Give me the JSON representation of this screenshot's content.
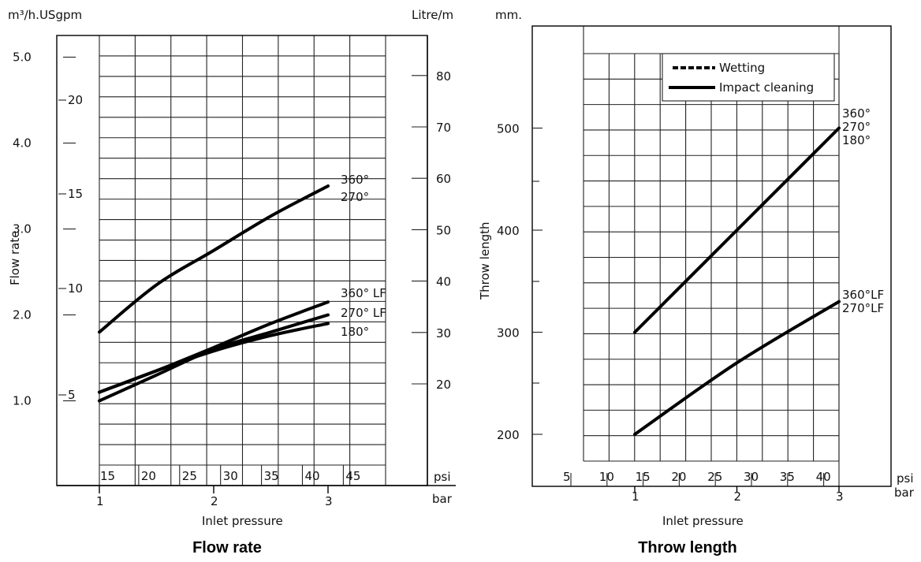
{
  "chart_data": [
    {
      "type": "line",
      "title": "Flow rate",
      "xlabel": "Inlet pressure",
      "ylabel": "Flow rate",
      "x_unit_labels": [
        "psi",
        "bar"
      ],
      "top_left_units": "m³/h.USgpm",
      "top_right_units": "Litre/m",
      "xlim_bar": [
        0.6,
        3.5
      ],
      "ylim_m3h": [
        0.05,
        5.55
      ],
      "bar_ticks": [
        "1",
        "2",
        "3"
      ],
      "psi_ticks": [
        "15",
        "20",
        "25",
        "30",
        "35",
        "40",
        "45"
      ],
      "m3h_ticks": [
        "1.0",
        "2.0",
        "3.0",
        "4.0",
        "5.0"
      ],
      "usgpm_ticks": [
        "5",
        "10",
        "15",
        "20"
      ],
      "litre_ticks": [
        "20",
        "30",
        "40",
        "50",
        "60",
        "70",
        "80"
      ],
      "grid": true,
      "series": [
        {
          "name": "360° 270°",
          "label_lines": [
            "360°",
            "270°"
          ],
          "x": [
            1,
            1.5,
            2,
            2.5,
            3
          ],
          "values": [
            1.8,
            2.35,
            2.75,
            3.15,
            3.5
          ]
        },
        {
          "name": "360° LF",
          "label_lines": [
            "360°  LF"
          ],
          "x": [
            1,
            1.5,
            2,
            2.5,
            3
          ],
          "values": [
            1.1,
            1.35,
            1.62,
            1.9,
            2.15
          ]
        },
        {
          "name": "270° LF",
          "label_lines": [
            "270°  LF"
          ],
          "x": [
            1,
            1.5,
            2,
            2.5,
            3
          ],
          "values": [
            1.0,
            1.3,
            1.6,
            1.8,
            2.0
          ]
        },
        {
          "name": "180°",
          "label_lines": [
            "180°"
          ],
          "x": [
            1,
            1.5,
            2,
            2.5,
            3
          ],
          "values": [
            1.1,
            1.35,
            1.58,
            1.76,
            1.9
          ]
        }
      ]
    },
    {
      "type": "line",
      "title": "Throw length",
      "xlabel": "Inlet pressure",
      "ylabel": "Throw length",
      "y_unit": "mm.",
      "x_unit_labels": [
        "psi",
        "bar"
      ],
      "xlim_bar": [
        0.0,
        3.0
      ],
      "ylim_mm": [
        150,
        600
      ],
      "bar_ticks": [
        "1",
        "2",
        "3"
      ],
      "psi_ticks": [
        "5",
        "10",
        "15",
        "20",
        "25",
        "30",
        "35",
        "40"
      ],
      "y_ticks": [
        "200",
        "300",
        "400",
        "500"
      ],
      "grid": true,
      "legend": {
        "placement": "top-right",
        "items": [
          "Wetting",
          "Impact  cleaning"
        ]
      },
      "series": [
        {
          "name": "360° 270° 180°",
          "label_lines": [
            "360°",
            "270°",
            "180°"
          ],
          "x": [
            1,
            2,
            3
          ],
          "values": [
            300,
            400,
            500
          ]
        },
        {
          "name": "360°LF 270°LF",
          "label_lines": [
            "360°LF",
            "270°LF"
          ],
          "x": [
            1,
            2,
            3
          ],
          "values": [
            200,
            270,
            330
          ]
        }
      ]
    }
  ]
}
